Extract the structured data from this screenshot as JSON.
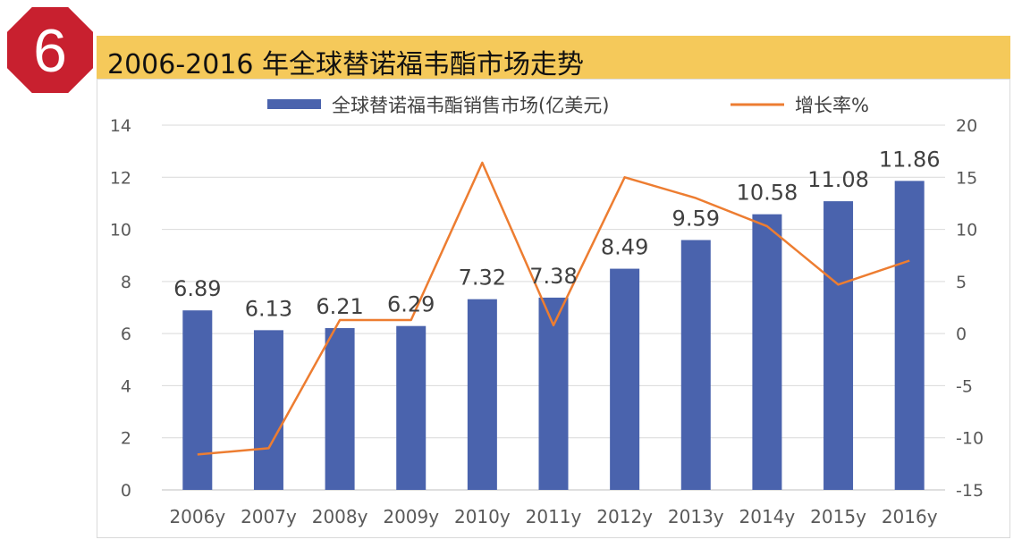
{
  "badge": {
    "number": "6",
    "color": "#c8202f"
  },
  "header": {
    "title": "2006-2016 年全球替诺福韦酯市场走势",
    "background": "#f5c95a"
  },
  "chart_data": {
    "type": "bar",
    "categories": [
      "2006y",
      "2007y",
      "2008y",
      "2009y",
      "2010y",
      "2011y",
      "2012y",
      "2013y",
      "2014y",
      "2015y",
      "2016y"
    ],
    "series": [
      {
        "name": "全球替诺福韦酯销售市场(亿美元)",
        "type": "bar",
        "axis": "left",
        "color": "#4a63ad",
        "values": [
          6.89,
          6.13,
          6.21,
          6.29,
          7.32,
          7.38,
          8.49,
          9.59,
          10.58,
          11.08,
          11.86
        ]
      },
      {
        "name": "增长率%",
        "type": "line",
        "axis": "right",
        "color": "#ed7d31",
        "values": [
          -11.6,
          -11.0,
          1.3,
          1.3,
          16.4,
          0.8,
          15.0,
          13.0,
          10.3,
          4.7,
          7.0
        ]
      }
    ],
    "ylim_left": [
      0,
      14
    ],
    "yticks_left": [
      "0",
      "2",
      "4",
      "6",
      "8",
      "10",
      "12",
      "14"
    ],
    "ylim_right": [
      -15,
      20
    ],
    "yticks_right": [
      "-15",
      "-10",
      "-5",
      "0",
      "5",
      "10",
      "15",
      "20"
    ],
    "data_labels": [
      "6.89",
      "6.13",
      "6.21",
      "6.29",
      "7.32",
      "7.38",
      "8.49",
      "9.59",
      "10.58",
      "11.08",
      "11.86"
    ],
    "grid": true,
    "legend_position": "top"
  }
}
